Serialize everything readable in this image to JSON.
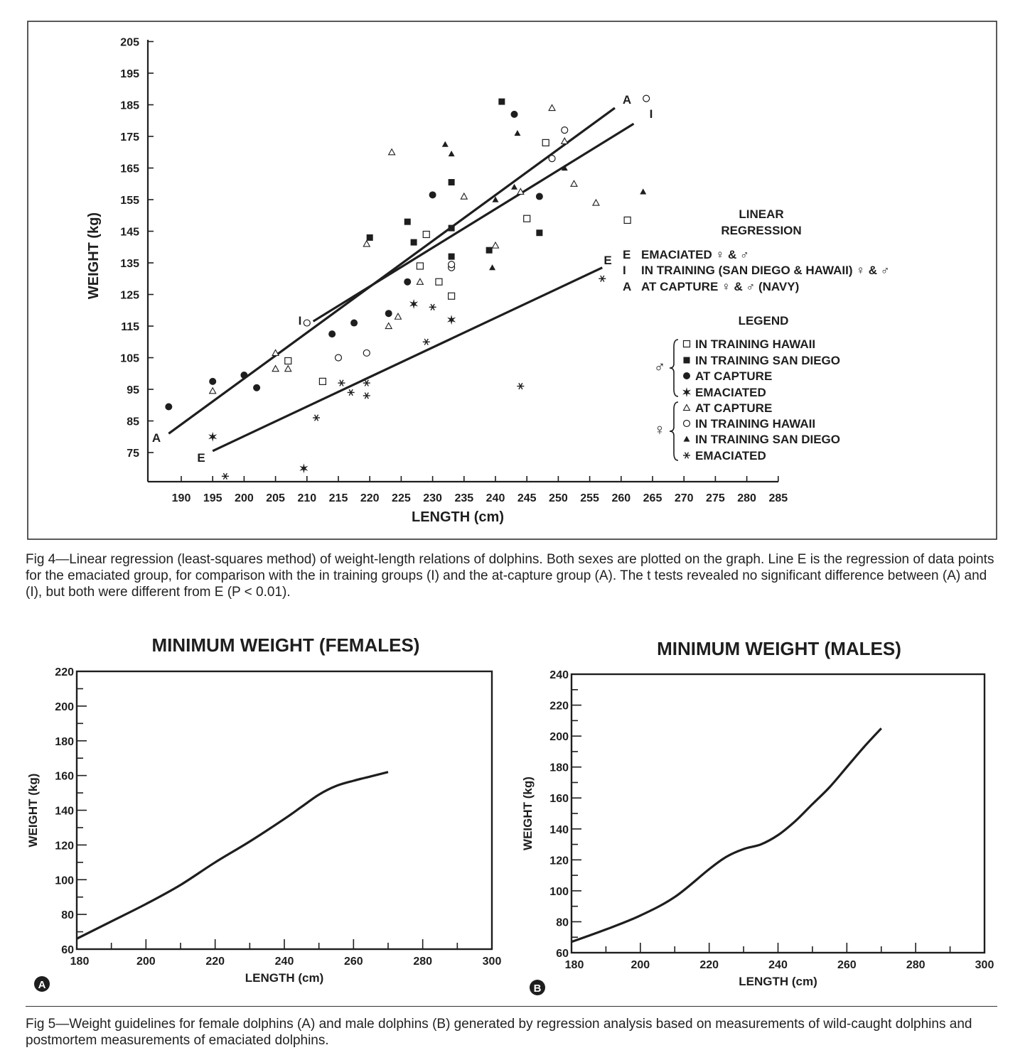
{
  "fig4": {
    "caption_label": "Fig 4",
    "caption": "Fig 4—Linear regression (least-squares method) of weight-length relations of dolphins. Both sexes are plotted on the graph. Line E is the regression of data points for the emaciated group, for comparison with the in training groups (I) and the at-capture group (A). The t tests revealed no significant difference between (A) and (I), but both were different from E (P < 0.01)."
  },
  "fig5": {
    "caption": "Fig 5—Weight guidelines for female dolphins (A) and male dolphins (B) generated by regression analysis based on measurements of wild-caught dolphins and postmortem measurements of emaciated dolphins.",
    "panel_a_letter": "A",
    "panel_b_letter": "B"
  },
  "colors": {
    "ink": "#1e1e1e",
    "paper": "#ffffff",
    "bleed": "#cfcfcf"
  },
  "chart_data": [
    {
      "type": "scatter",
      "xlabel": "LENGTH (cm)",
      "ylabel": "WEIGHT (kg)",
      "xlim": [
        185,
        285
      ],
      "ylim": [
        66,
        205
      ],
      "x_ticks": [
        190,
        195,
        200,
        205,
        210,
        215,
        220,
        225,
        230,
        235,
        240,
        245,
        250,
        255,
        260,
        265,
        270,
        275,
        280,
        285
      ],
      "y_ticks": [
        75,
        85,
        95,
        105,
        115,
        125,
        135,
        145,
        155,
        165,
        175,
        185,
        195,
        205
      ],
      "regression_title": "LINEAR REGRESSION",
      "regression_lines": [
        {
          "key": "E",
          "name": "EMACIATED ♀ & ♂",
          "x": [
            195,
            257
          ],
          "y": [
            75.5,
            133.5
          ]
        },
        {
          "key": "I",
          "name": "IN TRAINING (SAN DIEGO & HAWAII) ♀ & ♂",
          "x": [
            211,
            262
          ],
          "y": [
            116.5,
            179
          ]
        },
        {
          "key": "A",
          "name": "AT CAPTURE ♀ & ♂ (NAVY)",
          "x": [
            188,
            259
          ],
          "y": [
            81,
            184
          ]
        }
      ],
      "legend_title": "LEGEND",
      "male_symbol": "♂",
      "female_symbol": "♀",
      "series": [
        {
          "name": "IN TRAINING HAWAII",
          "sex": "male",
          "marker": "square-open",
          "points": [
            [
              207,
              104
            ],
            [
              212.5,
              97.5
            ],
            [
              228,
              134
            ],
            [
              229,
              144
            ],
            [
              231,
              129
            ],
            [
              233,
              124.5
            ],
            [
              245,
              149
            ],
            [
              248,
              173
            ],
            [
              261,
              148.5
            ]
          ]
        },
        {
          "name": "IN TRAINING SAN DIEGO",
          "sex": "male",
          "marker": "square-filled",
          "points": [
            [
              220,
              143
            ],
            [
              226,
              148
            ],
            [
              227,
              141.5
            ],
            [
              233,
              160.5
            ],
            [
              233,
              146
            ],
            [
              233,
              137
            ],
            [
              239,
              139
            ],
            [
              241,
              186
            ],
            [
              247,
              144.5
            ]
          ]
        },
        {
          "name": "AT CAPTURE",
          "sex": "male",
          "marker": "circle-filled",
          "points": [
            [
              188,
              89.5
            ],
            [
              195,
              97.5
            ],
            [
              200,
              99.5
            ],
            [
              202,
              95.5
            ],
            [
              214,
              112.5
            ],
            [
              217.5,
              116
            ],
            [
              223,
              119
            ],
            [
              226,
              129
            ],
            [
              230,
              156.5
            ],
            [
              243,
              182
            ],
            [
              247,
              156
            ]
          ]
        },
        {
          "name": "EMACIATED",
          "sex": "male",
          "marker": "star6",
          "points": [
            [
              195,
              80
            ],
            [
              209.5,
              70
            ],
            [
              227,
              122
            ],
            [
              233,
              117
            ]
          ]
        },
        {
          "name": "AT CAPTURE",
          "sex": "female",
          "marker": "triangle-open",
          "points": [
            [
              195,
              94.5
            ],
            [
              205,
              106.5
            ],
            [
              205,
              101.5
            ],
            [
              207,
              101.5
            ],
            [
              219.5,
              141
            ],
            [
              223,
              115
            ],
            [
              223.5,
              170
            ],
            [
              224.5,
              118
            ],
            [
              228,
              129
            ],
            [
              235,
              156
            ],
            [
              240,
              140.5
            ],
            [
              244,
              157.5
            ],
            [
              249,
              184
            ],
            [
              251,
              173.5
            ],
            [
              252.5,
              160
            ],
            [
              256,
              154
            ]
          ]
        },
        {
          "name": "IN TRAINING HAWAII",
          "sex": "female",
          "marker": "circle-open",
          "points": [
            [
              210,
              116
            ],
            [
              215,
              105
            ],
            [
              219.5,
              106.5
            ],
            [
              233,
              133.5
            ],
            [
              233,
              134.5
            ],
            [
              249,
              168
            ],
            [
              251,
              177
            ],
            [
              264,
              187
            ]
          ]
        },
        {
          "name": "IN TRAINING SAN DIEGO",
          "sex": "female",
          "marker": "triangle-filled",
          "points": [
            [
              232,
              172.5
            ],
            [
              233,
              169.5
            ],
            [
              240,
              155
            ],
            [
              239.5,
              133.5
            ],
            [
              243,
              159
            ],
            [
              243.5,
              176
            ],
            [
              251,
              165
            ],
            [
              263.5,
              157.5
            ]
          ]
        },
        {
          "name": "EMACIATED",
          "sex": "female",
          "marker": "asterisk",
          "points": [
            [
              197,
              67.5
            ],
            [
              211.5,
              86
            ],
            [
              215.5,
              97
            ],
            [
              217,
              94
            ],
            [
              219.5,
              97
            ],
            [
              219.5,
              93
            ],
            [
              229,
              110
            ],
            [
              230,
              121
            ],
            [
              244,
              96
            ],
            [
              257,
              130
            ]
          ]
        }
      ]
    },
    {
      "type": "line",
      "title": "MINIMUM WEIGHT (FEMALES)",
      "xlabel": "LENGTH (cm)",
      "ylabel": "WEIGHT (kg)",
      "xlim": [
        180,
        300
      ],
      "ylim": [
        60,
        220
      ],
      "x_ticks": [
        180,
        200,
        220,
        240,
        260,
        280,
        300
      ],
      "y_ticks": [
        60,
        80,
        100,
        120,
        140,
        160,
        180,
        200,
        220
      ],
      "series": [
        {
          "x": [
            180,
            190,
            200,
            210,
            220,
            230,
            240,
            245,
            250,
            255,
            260,
            265,
            270
          ],
          "y": [
            66,
            76,
            86,
            97,
            110,
            122,
            135,
            142,
            149,
            154,
            157,
            159.5,
            162
          ]
        }
      ]
    },
    {
      "type": "line",
      "title": "MINIMUM WEIGHT (MALES)",
      "xlabel": "LENGTH (cm)",
      "ylabel": "WEIGHT (kg)",
      "xlim": [
        180,
        300
      ],
      "ylim": [
        60,
        240
      ],
      "x_ticks": [
        180,
        200,
        220,
        240,
        260,
        280,
        300
      ],
      "y_ticks": [
        60,
        80,
        100,
        120,
        140,
        160,
        180,
        200,
        220,
        240
      ],
      "series": [
        {
          "x": [
            180,
            190,
            200,
            210,
            220,
            225,
            230,
            235,
            240,
            245,
            250,
            255,
            260,
            265,
            270
          ],
          "y": [
            67,
            75,
            84,
            96,
            114,
            122,
            127,
            130,
            136,
            145,
            156,
            167,
            180,
            193,
            205
          ]
        }
      ]
    }
  ]
}
